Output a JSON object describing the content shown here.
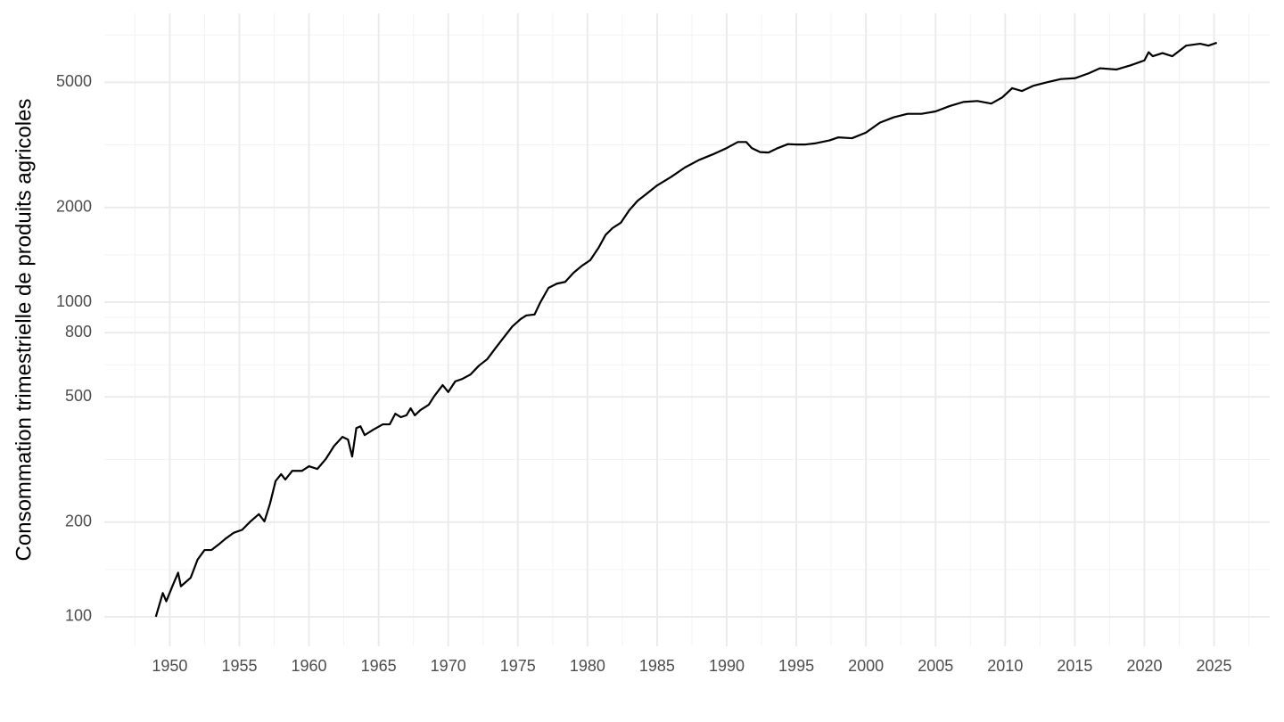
{
  "chart_data": {
    "type": "line",
    "y_label": "Consommation trimestrielle de produits agricoles",
    "log_scale_y": true,
    "grid": true,
    "color": "#000000",
    "xlim": [
      1945.3,
      2029.0
    ],
    "ylim": [
      80.6,
      8280
    ],
    "xticks": [
      1950,
      1955,
      1960,
      1965,
      1970,
      1975,
      1980,
      1985,
      1990,
      1995,
      2000,
      2005,
      2010,
      2015,
      2020,
      2025
    ],
    "yticks": [
      100,
      200,
      500,
      800,
      1000,
      2000,
      5000
    ],
    "x": [
      1949.0,
      1949.5,
      1949.75,
      1950.25,
      1950.6,
      1950.8,
      1951.5,
      1952.0,
      1952.5,
      1953.0,
      1953.6,
      1954.0,
      1954.6,
      1955.2,
      1955.8,
      1956.4,
      1956.8,
      1957.2,
      1957.6,
      1958.0,
      1958.3,
      1958.8,
      1959.5,
      1960.0,
      1960.6,
      1961.2,
      1961.8,
      1962.4,
      1962.8,
      1963.1,
      1963.4,
      1963.7,
      1964.0,
      1964.6,
      1965.3,
      1965.8,
      1966.2,
      1966.6,
      1967.0,
      1967.3,
      1967.6,
      1968.0,
      1968.6,
      1969.0,
      1969.6,
      1970.0,
      1970.5,
      1971.0,
      1971.6,
      1972.2,
      1972.8,
      1973.4,
      1974.0,
      1974.6,
      1975.2,
      1975.6,
      1976.2,
      1976.6,
      1977.2,
      1977.8,
      1978.4,
      1979.0,
      1979.6,
      1980.2,
      1980.8,
      1981.3,
      1981.8,
      1982.4,
      1983.0,
      1983.6,
      1984.3,
      1985.0,
      1986.0,
      1987.0,
      1988.0,
      1989.0,
      1990.0,
      1990.8,
      1991.4,
      1991.8,
      1992.4,
      1993.0,
      1993.6,
      1994.4,
      1995.0,
      1995.6,
      1996.4,
      1997.4,
      1998.0,
      1999.0,
      2000.0,
      2001.0,
      2002.0,
      2003.0,
      2004.0,
      2005.0,
      2006.0,
      2007.0,
      2008.0,
      2009.0,
      2009.8,
      2010.5,
      2011.2,
      2012.0,
      2013.0,
      2014.0,
      2015.0,
      2016.0,
      2016.8,
      2018.0,
      2019.0,
      2020.0,
      2020.3,
      2020.6,
      2021.3,
      2022.0,
      2023.0,
      2024.0,
      2024.6,
      2025.2
    ],
    "values": [
      100,
      119,
      112,
      127,
      138,
      125,
      133,
      152,
      163,
      163,
      171,
      177,
      185,
      189,
      201,
      212,
      201,
      229,
      270,
      284,
      273,
      291,
      291,
      301,
      295,
      317,
      349,
      373,
      366,
      323,
      398,
      403,
      378,
      393,
      409,
      409,
      442,
      431,
      437,
      460,
      437,
      454,
      472,
      503,
      545,
      518,
      560,
      570,
      589,
      628,
      659,
      715,
      774,
      837,
      884,
      907,
      914,
      996,
      1110,
      1145,
      1160,
      1240,
      1305,
      1360,
      1490,
      1636,
      1720,
      1790,
      1960,
      2100,
      2220,
      2350,
      2500,
      2680,
      2830,
      2950,
      3090,
      3230,
      3230,
      3090,
      3000,
      2990,
      3080,
      3180,
      3170,
      3170,
      3200,
      3270,
      3340,
      3320,
      3460,
      3720,
      3870,
      3970,
      3970,
      4040,
      4200,
      4330,
      4360,
      4280,
      4480,
      4790,
      4690,
      4870,
      5000,
      5120,
      5150,
      5340,
      5540,
      5490,
      5660,
      5870,
      6230,
      6050,
      6190,
      6050,
      6540,
      6630,
      6540,
      6680
    ]
  }
}
